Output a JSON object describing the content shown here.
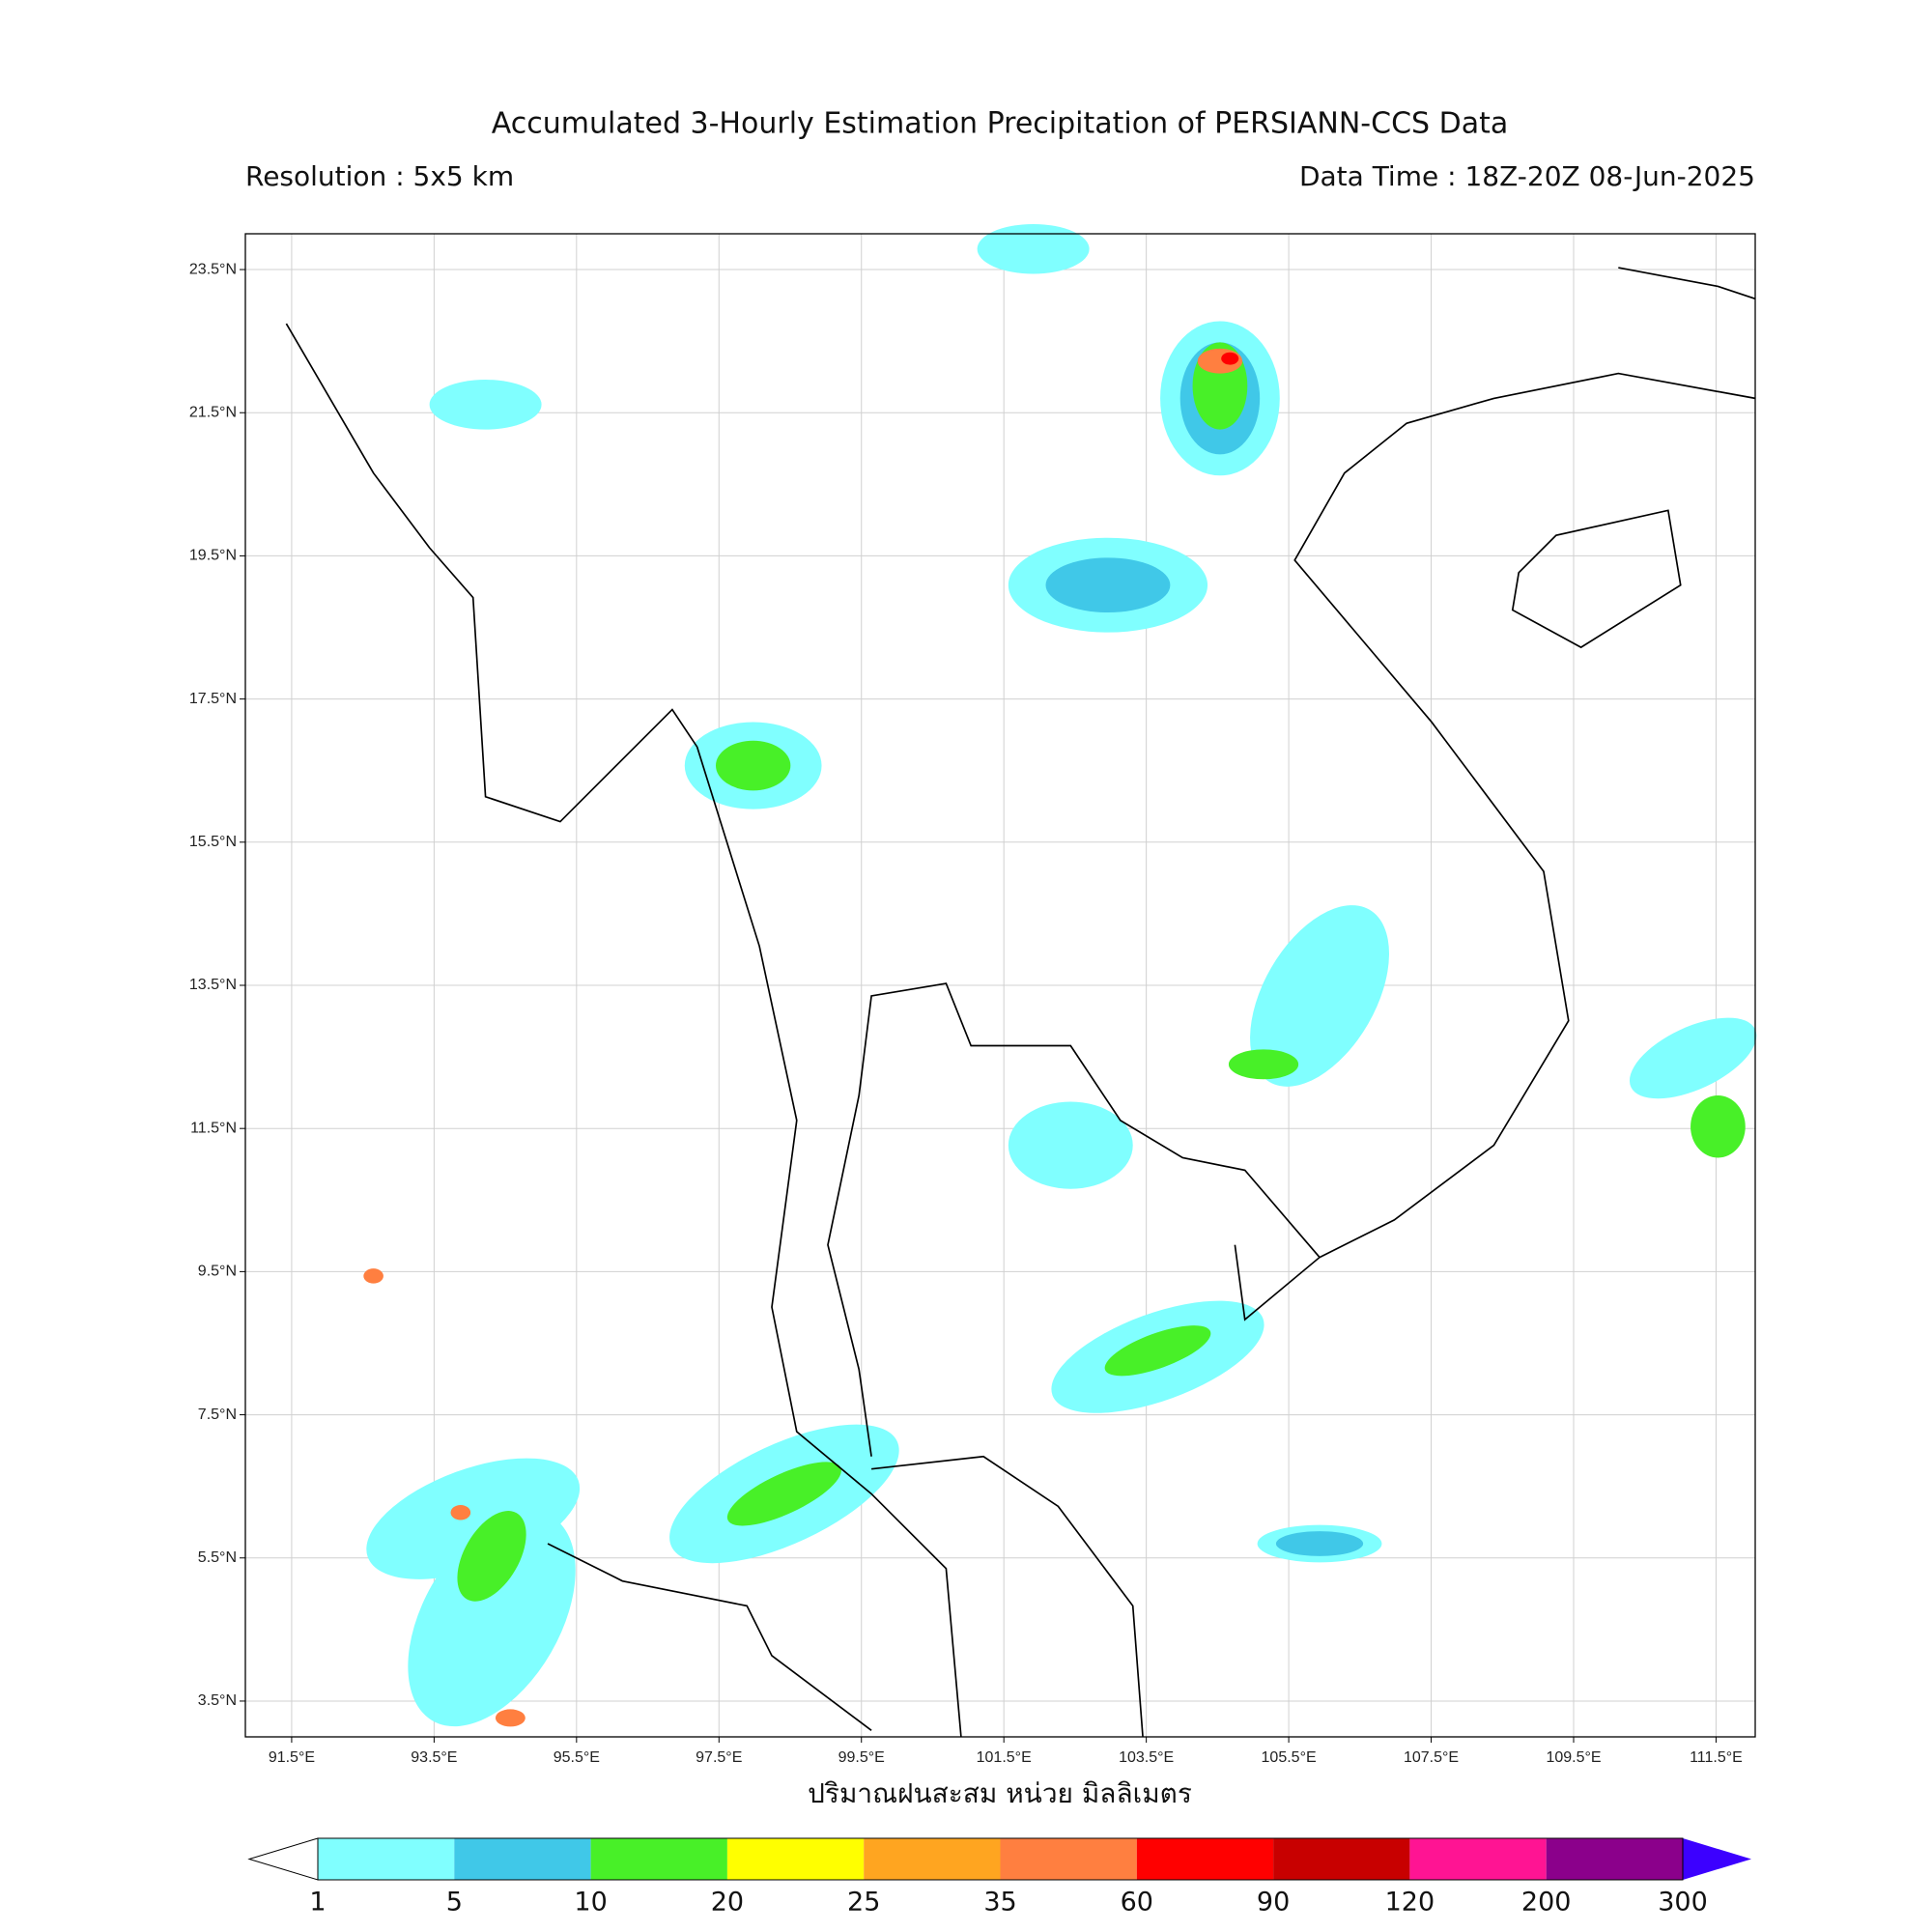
{
  "map": {
    "title": "Accumulated 3-Hourly Estimation Precipitation of PERSIANN-CCS Data",
    "resolution": "Resolution : 5x5 km",
    "data_time": "Data Time : 18Z-20Z 08-Jun-2025",
    "x_label": "ปริมาณฝนสะสม หน่วย มิลลิเมตร",
    "xlim": [
      90.85,
      112.05
    ],
    "ylim": [
      3.0,
      24.0
    ],
    "grid": true,
    "xticks": [
      {
        "value": 91.5,
        "label": "91.5°E"
      },
      {
        "value": 93.5,
        "label": "93.5°E"
      },
      {
        "value": 95.5,
        "label": "95.5°E"
      },
      {
        "value": 97.5,
        "label": "97.5°E"
      },
      {
        "value": 99.5,
        "label": "99.5°E"
      },
      {
        "value": 101.5,
        "label": "101.5°E"
      },
      {
        "value": 103.5,
        "label": "103.5°E"
      },
      {
        "value": 105.5,
        "label": "105.5°E"
      },
      {
        "value": 107.5,
        "label": "107.5°E"
      },
      {
        "value": 109.5,
        "label": "109.5°E"
      },
      {
        "value": 111.5,
        "label": "111.5°E"
      }
    ],
    "yticks": [
      {
        "value": 3.5,
        "label": "3.5°N"
      },
      {
        "value": 5.5,
        "label": "5.5°N"
      },
      {
        "value": 7.5,
        "label": "7.5°N"
      },
      {
        "value": 9.5,
        "label": "9.5°N"
      },
      {
        "value": 11.5,
        "label": "11.5°N"
      },
      {
        "value": 13.5,
        "label": "13.5°N"
      },
      {
        "value": 15.5,
        "label": "15.5°N"
      },
      {
        "value": 17.5,
        "label": "17.5°N"
      },
      {
        "value": 19.5,
        "label": "19.5°N"
      },
      {
        "value": 21.5,
        "label": "21.5°N"
      },
      {
        "value": 23.5,
        "label": "23.5°N"
      }
    ],
    "colorbar": {
      "levels": [
        1,
        5,
        10,
        20,
        25,
        35,
        60,
        90,
        120,
        200,
        300
      ],
      "colors": [
        "#ffffff",
        "#80ffff",
        "#40c8e8",
        "#48f028",
        "#ffff00",
        "#ffa520",
        "#ff7f40",
        "#ff0000",
        "#c80000",
        "#ff1493",
        "#8b008b",
        "#3c00ff"
      ]
    }
  }
}
